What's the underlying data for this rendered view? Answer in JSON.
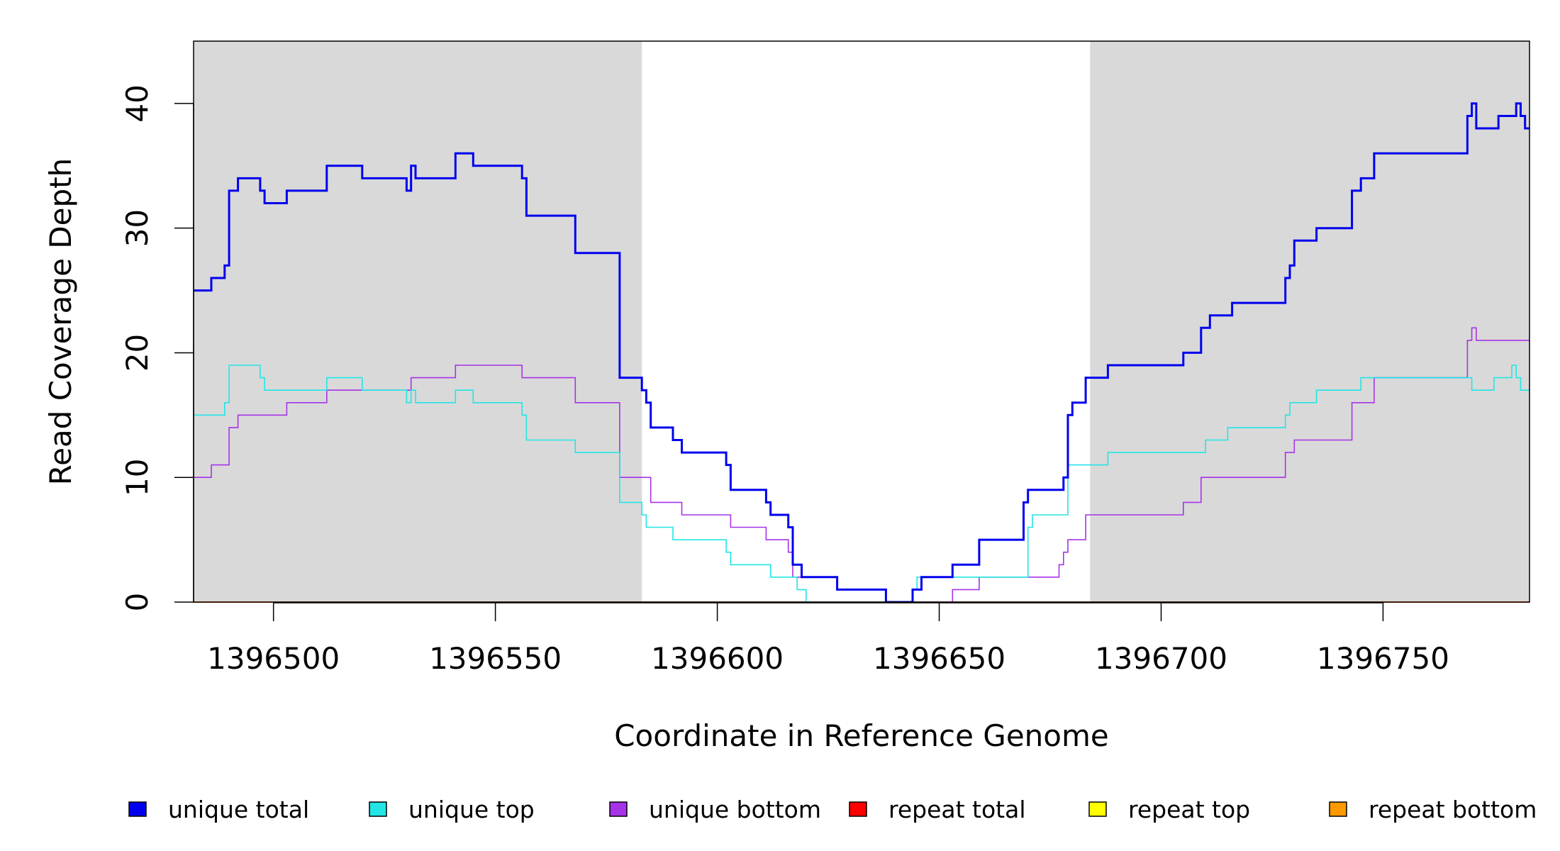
{
  "chart_data": {
    "type": "line",
    "step": true,
    "xlabel": "Coordinate in Reference Genome",
    "ylabel": "Read Coverage Depth",
    "xlim": [
      1396482,
      1396783
    ],
    "ylim": [
      0,
      45
    ],
    "x_ticks": [
      1396500,
      1396550,
      1396600,
      1396650,
      1396700,
      1396750
    ],
    "x_tick_labels": [
      "1396500",
      "1396550",
      "1396600",
      "1396650",
      "1396700",
      "1396750"
    ],
    "y_ticks": [
      0,
      10,
      20,
      30,
      40
    ],
    "y_tick_labels": [
      "0",
      "10",
      "20",
      "30",
      "40"
    ],
    "shaded_regions": [
      {
        "x0": 1396482,
        "x1": 1396583,
        "color": "#d9d9d9"
      },
      {
        "x0": 1396684,
        "x1": 1396783,
        "color": "#d9d9d9"
      }
    ],
    "series": [
      {
        "name": "unique total",
        "color": "#0000ee",
        "emphasis": "bold",
        "points": [
          [
            1396482,
            25
          ],
          [
            1396486,
            26
          ],
          [
            1396489,
            27
          ],
          [
            1396490,
            33
          ],
          [
            1396492,
            34
          ],
          [
            1396497,
            33
          ],
          [
            1396498,
            32
          ],
          [
            1396503,
            33
          ],
          [
            1396512,
            35
          ],
          [
            1396520,
            34
          ],
          [
            1396530,
            33
          ],
          [
            1396531,
            35
          ],
          [
            1396532,
            34
          ],
          [
            1396541,
            36
          ],
          [
            1396545,
            35
          ],
          [
            1396556,
            34
          ],
          [
            1396557,
            31
          ],
          [
            1396568,
            28
          ],
          [
            1396578,
            18
          ],
          [
            1396583,
            17
          ],
          [
            1396584,
            16
          ],
          [
            1396585,
            14
          ],
          [
            1396590,
            13
          ],
          [
            1396592,
            12
          ],
          [
            1396602,
            11
          ],
          [
            1396603,
            9
          ],
          [
            1396611,
            8
          ],
          [
            1396612,
            7
          ],
          [
            1396616,
            6
          ],
          [
            1396617,
            3
          ],
          [
            1396619,
            2
          ],
          [
            1396627,
            1
          ],
          [
            1396638,
            0
          ],
          [
            1396644,
            1
          ],
          [
            1396646,
            2
          ],
          [
            1396653,
            3
          ],
          [
            1396659,
            5
          ],
          [
            1396669,
            8
          ],
          [
            1396670,
            9
          ],
          [
            1396678,
            10
          ],
          [
            1396679,
            15
          ],
          [
            1396680,
            16
          ],
          [
            1396683,
            18
          ],
          [
            1396688,
            19
          ],
          [
            1396705,
            20
          ],
          [
            1396709,
            22
          ],
          [
            1396711,
            23
          ],
          [
            1396716,
            24
          ],
          [
            1396728,
            26
          ],
          [
            1396729,
            27
          ],
          [
            1396730,
            29
          ],
          [
            1396735,
            30
          ],
          [
            1396743,
            33
          ],
          [
            1396745,
            34
          ],
          [
            1396748,
            36
          ],
          [
            1396769,
            39
          ],
          [
            1396770,
            40
          ],
          [
            1396771,
            38
          ],
          [
            1396776,
            39
          ],
          [
            1396780,
            40
          ],
          [
            1396781,
            39
          ],
          [
            1396782,
            38
          ],
          [
            1396783,
            38
          ]
        ]
      },
      {
        "name": "unique top",
        "color": "#22e5e5",
        "emphasis": "normal",
        "points": [
          [
            1396482,
            15
          ],
          [
            1396489,
            16
          ],
          [
            1396490,
            19
          ],
          [
            1396497,
            18
          ],
          [
            1396498,
            17
          ],
          [
            1396512,
            18
          ],
          [
            1396520,
            17
          ],
          [
            1396530,
            16
          ],
          [
            1396531,
            17
          ],
          [
            1396532,
            16
          ],
          [
            1396541,
            17
          ],
          [
            1396545,
            16
          ],
          [
            1396556,
            15
          ],
          [
            1396557,
            13
          ],
          [
            1396568,
            12
          ],
          [
            1396578,
            8
          ],
          [
            1396583,
            7
          ],
          [
            1396584,
            6
          ],
          [
            1396590,
            5
          ],
          [
            1396602,
            4
          ],
          [
            1396603,
            3
          ],
          [
            1396612,
            2
          ],
          [
            1396618,
            1
          ],
          [
            1396620,
            0
          ],
          [
            1396644,
            1
          ],
          [
            1396645,
            2
          ],
          [
            1396670,
            6
          ],
          [
            1396671,
            7
          ],
          [
            1396679,
            11
          ],
          [
            1396688,
            12
          ],
          [
            1396710,
            13
          ],
          [
            1396715,
            14
          ],
          [
            1396728,
            15
          ],
          [
            1396729,
            16
          ],
          [
            1396735,
            17
          ],
          [
            1396745,
            18
          ],
          [
            1396768,
            18
          ],
          [
            1396770,
            17
          ],
          [
            1396775,
            18
          ],
          [
            1396779,
            19
          ],
          [
            1396780,
            18
          ],
          [
            1396781,
            17
          ],
          [
            1396783,
            17
          ]
        ]
      },
      {
        "name": "unique bottom",
        "color": "#a633e8",
        "emphasis": "normal",
        "points": [
          [
            1396482,
            10
          ],
          [
            1396486,
            11
          ],
          [
            1396490,
            14
          ],
          [
            1396492,
            15
          ],
          [
            1396503,
            16
          ],
          [
            1396512,
            17
          ],
          [
            1396531,
            18
          ],
          [
            1396541,
            19
          ],
          [
            1396556,
            18
          ],
          [
            1396568,
            16
          ],
          [
            1396578,
            10
          ],
          [
            1396585,
            8
          ],
          [
            1396592,
            7
          ],
          [
            1396603,
            6
          ],
          [
            1396611,
            5
          ],
          [
            1396616,
            4
          ],
          [
            1396617,
            2
          ],
          [
            1396619,
            2
          ],
          [
            1396627,
            1
          ],
          [
            1396638,
            0
          ],
          [
            1396653,
            1
          ],
          [
            1396659,
            2
          ],
          [
            1396677,
            3
          ],
          [
            1396678,
            4
          ],
          [
            1396679,
            5
          ],
          [
            1396683,
            7
          ],
          [
            1396705,
            8
          ],
          [
            1396709,
            10
          ],
          [
            1396728,
            12
          ],
          [
            1396730,
            13
          ],
          [
            1396743,
            16
          ],
          [
            1396748,
            18
          ],
          [
            1396769,
            21
          ],
          [
            1396770,
            22
          ],
          [
            1396771,
            21
          ],
          [
            1396783,
            21
          ]
        ]
      },
      {
        "name": "repeat total",
        "color": "#ff0000",
        "emphasis": "normal",
        "points": [
          [
            1396482,
            0
          ],
          [
            1396783,
            0
          ]
        ]
      },
      {
        "name": "repeat top",
        "color": "#ffff00",
        "emphasis": "normal",
        "points": [
          [
            1396482,
            0
          ],
          [
            1396783,
            0
          ]
        ]
      },
      {
        "name": "repeat bottom",
        "color": "#ff9900",
        "emphasis": "normal",
        "points": [
          [
            1396482,
            0
          ],
          [
            1396783,
            0
          ]
        ]
      }
    ],
    "legend": [
      {
        "label": "unique total",
        "color": "#0000ee"
      },
      {
        "label": "unique top",
        "color": "#22e5e5"
      },
      {
        "label": "unique bottom",
        "color": "#a633e8"
      },
      {
        "label": "repeat total",
        "color": "#ff0000"
      },
      {
        "label": "repeat top",
        "color": "#ffff00"
      },
      {
        "label": "repeat bottom",
        "color": "#ff9900"
      }
    ],
    "legend_position": "bottom"
  }
}
